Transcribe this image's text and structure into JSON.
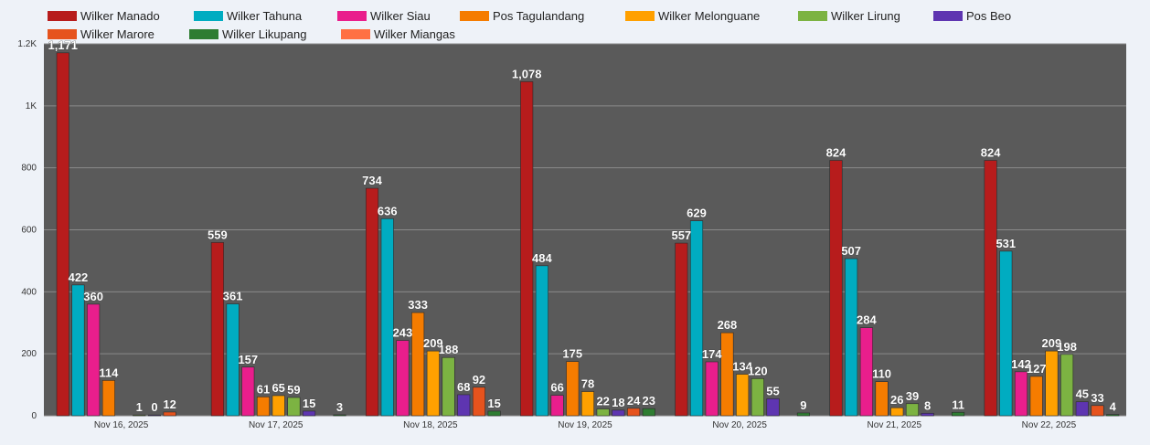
{
  "chart_data": {
    "type": "bar",
    "categories": [
      "Nov 16, 2025",
      "Nov 17, 2025",
      "Nov 18, 2025",
      "Nov 19, 2025",
      "Nov 20, 2025",
      "Nov 21, 2025",
      "Nov 22, 2025"
    ],
    "series": [
      {
        "name": "Wilker Manado",
        "color": "#b71c1c",
        "values": [
          1171,
          559,
          734,
          1078,
          557,
          824,
          824
        ],
        "labels": [
          "1,171",
          "559",
          "734",
          "1,078",
          "557",
          "824",
          "824"
        ]
      },
      {
        "name": "Wilker Tahuna",
        "color": "#00acc1",
        "values": [
          422,
          361,
          636,
          484,
          629,
          507,
          531
        ],
        "labels": [
          "422",
          "361",
          "636",
          "484",
          "629",
          "507",
          "531"
        ]
      },
      {
        "name": "Wilker Siau",
        "color": "#e91e8c",
        "values": [
          360,
          157,
          243,
          66,
          174,
          284,
          142
        ],
        "labels": [
          "360",
          "157",
          "243",
          "66",
          "174",
          "284",
          "142"
        ]
      },
      {
        "name": "Pos Tagulandang",
        "color": "#f57c00",
        "values": [
          114,
          61,
          333,
          175,
          268,
          110,
          127
        ],
        "labels": [
          "114",
          "61",
          "333",
          "175",
          "268",
          "110",
          "127"
        ]
      },
      {
        "name": "Wilker Melonguane",
        "color": "#ffa000",
        "values": [
          null,
          65,
          209,
          78,
          134,
          26,
          209
        ],
        "labels": [
          "",
          "65",
          "209",
          "78",
          "134",
          "26",
          "209"
        ]
      },
      {
        "name": "Wilker Lirung",
        "color": "#7cb342",
        "values": [
          1,
          59,
          188,
          22,
          120,
          39,
          198
        ],
        "labels": [
          "1",
          "59",
          "188",
          "22",
          "120",
          "39",
          "198"
        ]
      },
      {
        "name": "Pos Beo",
        "color": "#5e35b1",
        "values": [
          0,
          15,
          68,
          18,
          55,
          8,
          45
        ],
        "labels": [
          "0",
          "15",
          "68",
          "18",
          "55",
          "8",
          "45"
        ]
      },
      {
        "name": "Wilker Marore",
        "color": "#e6531d",
        "values": [
          12,
          null,
          92,
          24,
          null,
          null,
          33
        ],
        "labels": [
          "12",
          "",
          "92",
          "24",
          "",
          "",
          "33"
        ]
      },
      {
        "name": "Wilker Likupang",
        "color": "#2e7d32",
        "values": [
          null,
          3,
          15,
          23,
          9,
          11,
          4
        ],
        "labels": [
          "",
          "3",
          "15",
          "23",
          "9",
          "11",
          "4"
        ]
      },
      {
        "name": "Wilker Miangas",
        "color": "#ff7043",
        "values": [
          null,
          null,
          null,
          null,
          null,
          null,
          null
        ],
        "labels": [
          "",
          "",
          "",
          "",
          "",
          "",
          ""
        ]
      }
    ],
    "yticks": [
      "0",
      "200",
      "400",
      "600",
      "800",
      "1K",
      "1.2K"
    ],
    "ylim": [
      0,
      1200
    ],
    "plot_background": "#5a5a5a",
    "grid": true,
    "legend_position": "top-left"
  }
}
